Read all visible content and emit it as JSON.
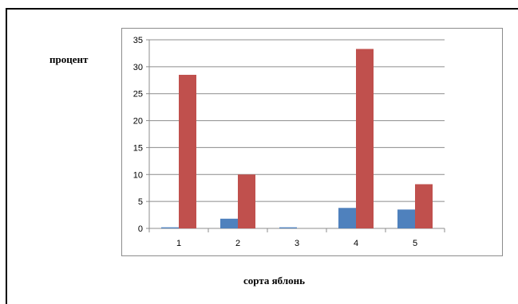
{
  "chart_data": {
    "type": "bar",
    "categories": [
      "1",
      "2",
      "3",
      "4",
      "5"
    ],
    "series": [
      {
        "values": [
          0.2,
          1.8,
          0.2,
          3.8,
          3.5
        ],
        "color": "#4f81bd"
      },
      {
        "values": [
          28.5,
          10,
          0,
          33.3,
          8.2
        ],
        "color": "#c0504d"
      }
    ],
    "ylim": [
      0,
      35
    ],
    "yticks": [
      "0",
      "5",
      "10",
      "15",
      "20",
      "25",
      "30",
      "35"
    ],
    "ylabel": "процент",
    "xlabel": "сорта яблонь",
    "grid": true
  }
}
